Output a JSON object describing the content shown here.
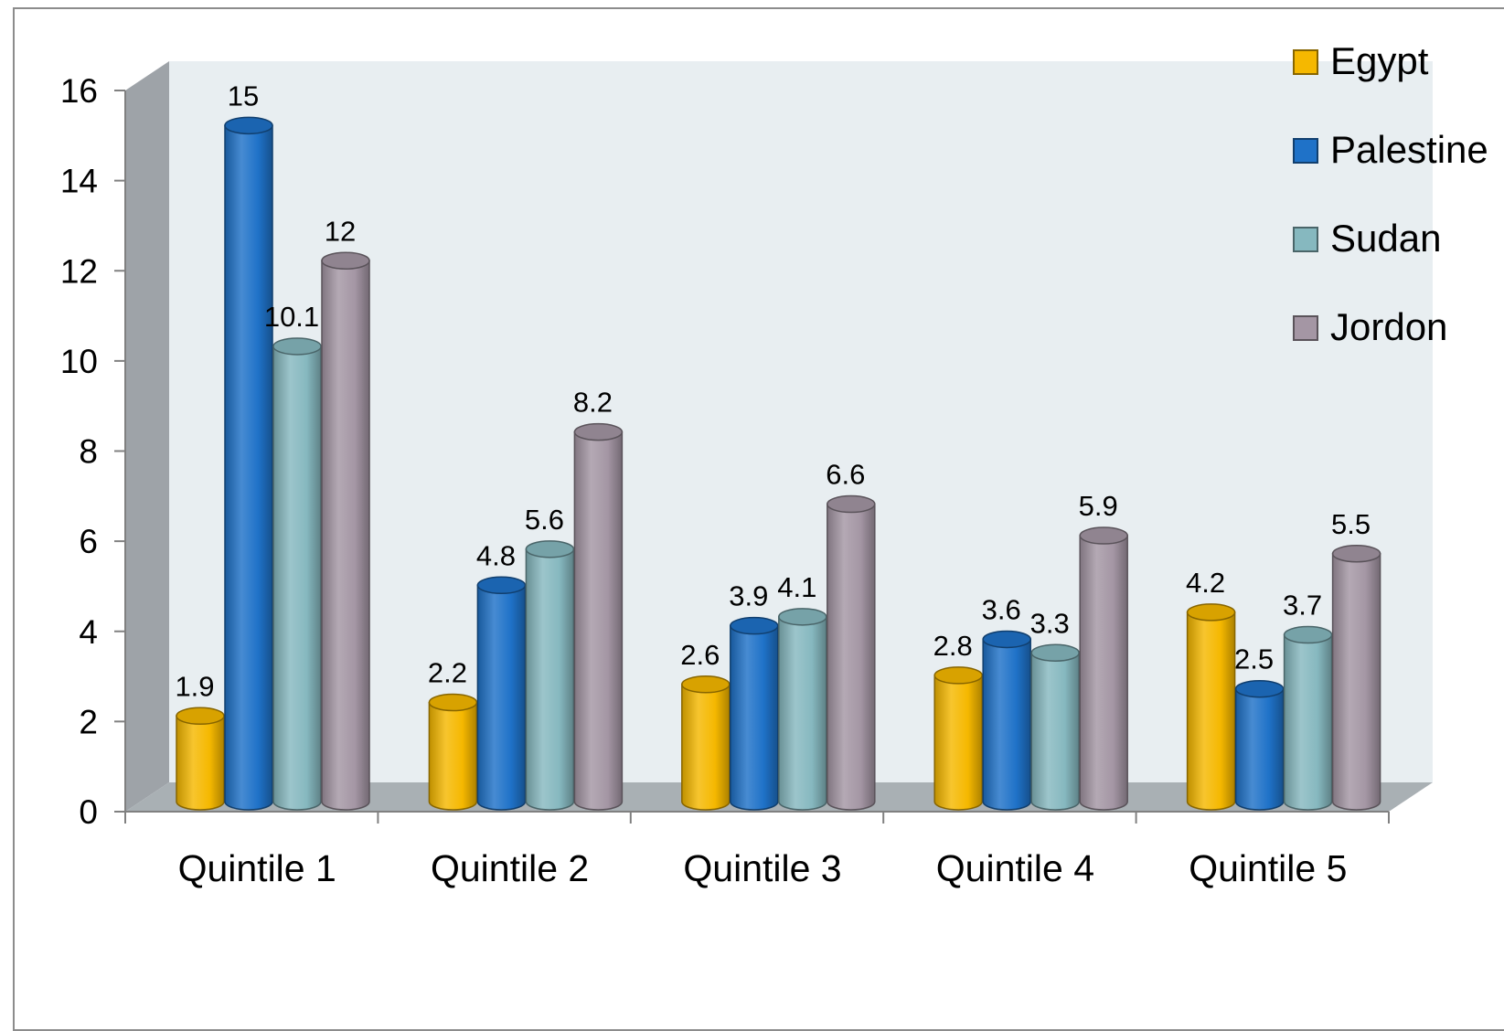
{
  "chart_data": {
    "type": "bar",
    "title": "",
    "xlabel": "",
    "ylabel": "",
    "ylim": [
      0,
      16
    ],
    "yticks": [
      0,
      2,
      4,
      6,
      8,
      10,
      12,
      14,
      16
    ],
    "categories": [
      "Quintile 1",
      "Quintile 2",
      "Quintile 3",
      "Quintile 4",
      "Quintile 5"
    ],
    "series": [
      {
        "name": "Egypt",
        "values": [
          1.9,
          2.2,
          2.6,
          2.8,
          4.2
        ],
        "color": "#f5b800"
      },
      {
        "name": "Palestine",
        "values": [
          15,
          4.8,
          3.9,
          3.6,
          2.5
        ],
        "color": "#1f72c8"
      },
      {
        "name": "Sudan",
        "values": [
          10.1,
          5.6,
          4.1,
          3.3,
          3.7
        ],
        "color": "#86b8bf"
      },
      {
        "name": "Jordon",
        "values": [
          12,
          8.2,
          6.6,
          5.9,
          5.5
        ],
        "color": "#a496a4"
      }
    ],
    "data_labels": [
      [
        "1.9",
        "2.2",
        "2.6",
        "2.8",
        "4.2"
      ],
      [
        "15",
        "4.8",
        "3.9",
        "3.6",
        "2.5"
      ],
      [
        "10.1",
        "5.6",
        "4.1",
        "3.3",
        "3.7"
      ],
      [
        "12",
        "8.2",
        "6.6",
        "5.9",
        "5.5"
      ]
    ],
    "grid": false,
    "legend_position": "top-right",
    "style": "3d-cylinder"
  }
}
